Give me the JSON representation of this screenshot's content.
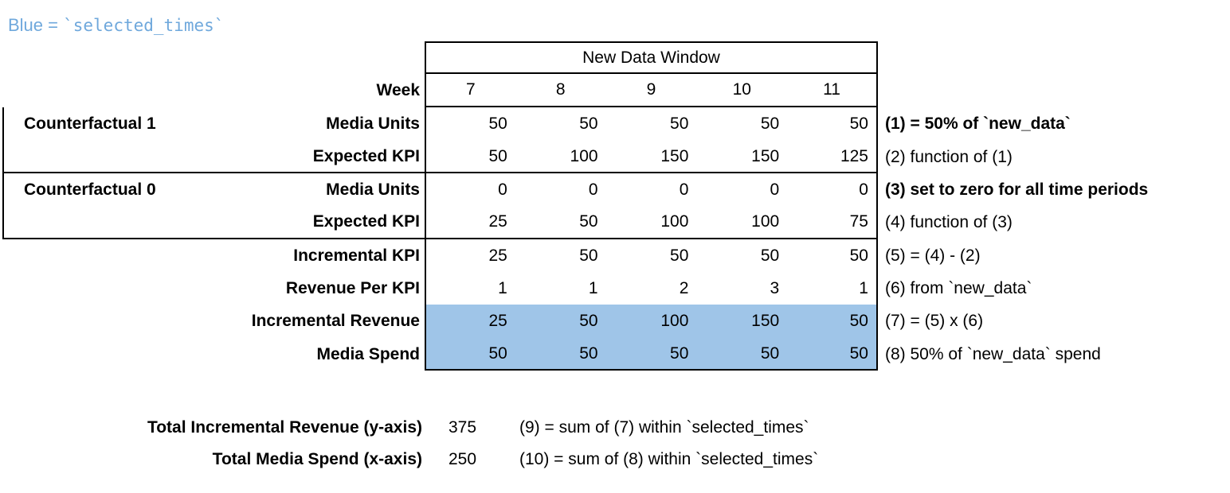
{
  "legend": {
    "prefix": "Blue = ",
    "code": "`selected_times`"
  },
  "colors": {
    "highlight_blue": "#9FC5E8",
    "legend_text_blue": "#6FA8DC",
    "border": "#000000"
  },
  "table": {
    "header": "New Data Window",
    "week_label": "Week",
    "weeks": [
      "7",
      "8",
      "9",
      "10",
      "11"
    ],
    "rows": [
      {
        "group": "Counterfactual 1",
        "label": "Media Units",
        "values": [
          "50",
          "50",
          "50",
          "50",
          "50"
        ],
        "annotation": "(1) = 50% of `new_data`",
        "annotation_bold": true,
        "highlighted": false
      },
      {
        "group": "",
        "label": "Expected KPI",
        "values": [
          "50",
          "100",
          "150",
          "150",
          "125"
        ],
        "annotation": "(2) function of (1)",
        "annotation_bold": false,
        "highlighted": false
      },
      {
        "group": "Counterfactual 0",
        "label": "Media Units",
        "values": [
          "0",
          "0",
          "0",
          "0",
          "0"
        ],
        "annotation": "(3) set to zero for all time periods",
        "annotation_bold": true,
        "highlighted": false
      },
      {
        "group": "",
        "label": "Expected KPI",
        "values": [
          "25",
          "50",
          "100",
          "100",
          "75"
        ],
        "annotation": "(4) function of (3)",
        "annotation_bold": false,
        "highlighted": false
      },
      {
        "group": "",
        "label": "Incremental KPI",
        "values": [
          "25",
          "50",
          "50",
          "50",
          "50"
        ],
        "annotation": "(5) = (4) - (2)",
        "annotation_bold": false,
        "highlighted": false
      },
      {
        "group": "",
        "label": "Revenue Per KPI",
        "values": [
          "1",
          "1",
          "2",
          "3",
          "1"
        ],
        "annotation": "(6) from `new_data`",
        "annotation_bold": false,
        "highlighted": false
      },
      {
        "group": "",
        "label": "Incremental Revenue",
        "values": [
          "25",
          "50",
          "100",
          "150",
          "50"
        ],
        "annotation": "(7) = (5) x (6)",
        "annotation_bold": false,
        "highlighted": true
      },
      {
        "group": "",
        "label": "Media Spend",
        "values": [
          "50",
          "50",
          "50",
          "50",
          "50"
        ],
        "annotation": "(8) 50% of `new_data` spend",
        "annotation_bold": false,
        "highlighted": true
      }
    ]
  },
  "totals": [
    {
      "label": "Total Incremental Revenue (y-axis)",
      "value": "375",
      "annotation": "(9) = sum of (7) within `selected_times`"
    },
    {
      "label": "Total Media Spend (x-axis)",
      "value": "250",
      "annotation": "(10) = sum of (8) within `selected_times`"
    }
  ]
}
